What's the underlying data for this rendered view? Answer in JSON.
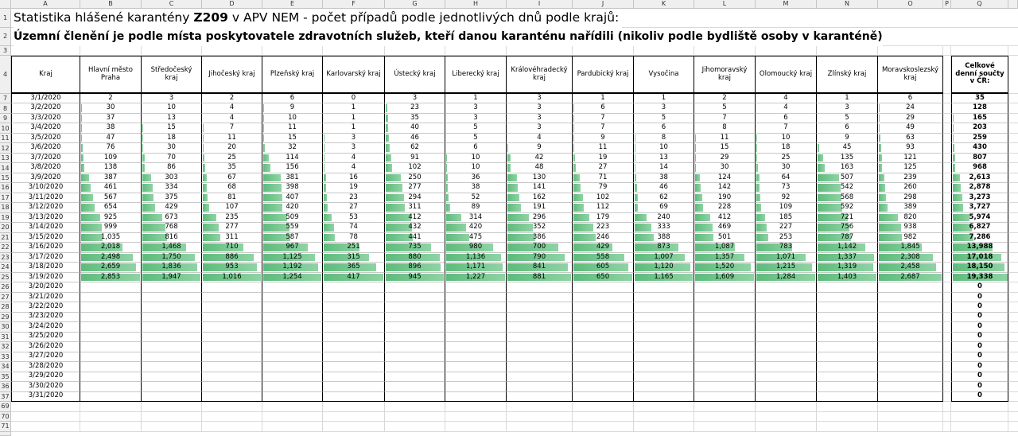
{
  "sheet": {
    "column_letters": [
      "A",
      "B",
      "C",
      "D",
      "E",
      "F",
      "G",
      "H",
      "I",
      "J",
      "K",
      "L",
      "M",
      "N",
      "O",
      "P",
      "Q"
    ],
    "row_numbers": [
      1,
      2,
      3,
      4,
      7,
      8,
      9,
      10,
      11,
      12,
      13,
      14,
      15,
      16,
      17,
      18,
      19,
      20,
      21,
      22,
      23,
      24,
      25,
      26,
      27,
      28,
      29,
      30,
      31,
      32,
      33,
      34,
      35,
      36,
      37,
      69,
      70,
      71
    ],
    "title_start": "Statistika hlášené karantény ",
    "title_code": "Z209",
    "title_end": " v APV NEM - počet případů podle jednotlivých dnů podle krajů:",
    "subtitle": "Územní členění je podle místa poskytovatele zdravotních služeb, kteří danou karanténu nařídili (nikoliv podle bydliště osoby v karanténě)"
  },
  "table": {
    "headers": [
      "Kraj",
      "Hlavní město Praha",
      "Středočeský kraj",
      "Jihočeský kraj",
      "Plzeňský kraj",
      "Karlovarský kraj",
      "Ústecký kraj",
      "Liberecký kraj",
      "Královéhradecký kraj",
      "Pardubický kraj",
      "Vysočina",
      "Jihomoravský kraj",
      "Olomoucký kraj",
      "Zlínský kraj",
      "Moravskoslezský kraj"
    ],
    "total_header": "Celkové denní součty v ČR:",
    "rows": [
      {
        "date": "3/1/2020",
        "values": [
          2,
          3,
          2,
          6,
          0,
          3,
          1,
          3,
          1,
          1,
          2,
          4,
          1,
          6
        ],
        "total": 35
      },
      {
        "date": "3/2/2020",
        "values": [
          30,
          10,
          4,
          9,
          1,
          23,
          3,
          3,
          6,
          3,
          5,
          4,
          3,
          24
        ],
        "total": 128
      },
      {
        "date": "3/3/2020",
        "values": [
          37,
          13,
          4,
          10,
          1,
          35,
          3,
          3,
          7,
          5,
          7,
          6,
          5,
          29
        ],
        "total": 165
      },
      {
        "date": "3/4/2020",
        "values": [
          38,
          15,
          7,
          11,
          1,
          40,
          5,
          3,
          7,
          6,
          8,
          7,
          6,
          49
        ],
        "total": 203
      },
      {
        "date": "3/5/2020",
        "values": [
          47,
          18,
          11,
          15,
          3,
          46,
          5,
          4,
          9,
          8,
          11,
          10,
          9,
          63
        ],
        "total": 259
      },
      {
        "date": "3/6/2020",
        "values": [
          76,
          30,
          20,
          32,
          3,
          62,
          6,
          9,
          11,
          10,
          15,
          18,
          45,
          93
        ],
        "total": 430
      },
      {
        "date": "3/7/2020",
        "values": [
          109,
          70,
          25,
          114,
          4,
          91,
          10,
          42,
          19,
          13,
          29,
          25,
          135,
          121
        ],
        "total": 807
      },
      {
        "date": "3/8/2020",
        "values": [
          138,
          86,
          35,
          156,
          4,
          102,
          10,
          48,
          27,
          14,
          30,
          30,
          163,
          125
        ],
        "total": 968
      },
      {
        "date": "3/9/2020",
        "values": [
          387,
          303,
          67,
          381,
          16,
          250,
          36,
          130,
          71,
          38,
          124,
          64,
          507,
          239
        ],
        "total": {
          "value": 2613,
          "label": "2,613"
        }
      },
      {
        "date": "3/10/2020",
        "values": [
          461,
          334,
          68,
          398,
          19,
          277,
          38,
          141,
          79,
          46,
          142,
          73,
          542,
          260
        ],
        "total": {
          "value": 2878,
          "label": "2,878"
        }
      },
      {
        "date": "3/11/2020",
        "values": [
          567,
          375,
          81,
          407,
          23,
          294,
          52,
          162,
          102,
          62,
          190,
          92,
          568,
          298
        ],
        "total": {
          "value": 3273,
          "label": "3,273"
        }
      },
      {
        "date": "3/12/2020",
        "values": [
          654,
          429,
          107,
          420,
          27,
          311,
          89,
          191,
          112,
          69,
          228,
          109,
          592,
          389
        ],
        "total": {
          "value": 3727,
          "label": "3,727"
        }
      },
      {
        "date": "3/13/2020",
        "values": [
          925,
          673,
          235,
          509,
          53,
          412,
          314,
          296,
          179,
          240,
          412,
          185,
          721,
          820
        ],
        "total": {
          "value": 5974,
          "label": "5,974"
        }
      },
      {
        "date": "3/14/2020",
        "values": [
          999,
          768,
          277,
          559,
          74,
          432,
          420,
          352,
          223,
          333,
          469,
          227,
          756,
          938
        ],
        "total": {
          "value": 6827,
          "label": "6,827"
        }
      },
      {
        "date": "3/15/2020",
        "values": [
          {
            "value": 1035,
            "label": "1,035"
          },
          816,
          311,
          587,
          78,
          441,
          475,
          386,
          246,
          388,
          501,
          253,
          787,
          982
        ],
        "total": {
          "value": 7286,
          "label": "7,286"
        }
      },
      {
        "date": "3/16/2020",
        "values": [
          {
            "value": 2018,
            "label": "2,018"
          },
          {
            "value": 1468,
            "label": "1,468"
          },
          710,
          967,
          251,
          735,
          980,
          700,
          429,
          873,
          {
            "value": 1087,
            "label": "1,087"
          },
          783,
          {
            "value": 1142,
            "label": "1,142"
          },
          {
            "value": 1845,
            "label": "1,845"
          }
        ],
        "total": {
          "value": 13988,
          "label": "13,988"
        }
      },
      {
        "date": "3/17/2020",
        "values": [
          {
            "value": 2498,
            "label": "2,498"
          },
          {
            "value": 1750,
            "label": "1,750"
          },
          886,
          {
            "value": 1125,
            "label": "1,125"
          },
          315,
          880,
          {
            "value": 1136,
            "label": "1,136"
          },
          790,
          558,
          {
            "value": 1007,
            "label": "1,007"
          },
          {
            "value": 1357,
            "label": "1,357"
          },
          {
            "value": 1071,
            "label": "1,071"
          },
          {
            "value": 1337,
            "label": "1,337"
          },
          {
            "value": 2308,
            "label": "2,308"
          }
        ],
        "total": {
          "value": 17018,
          "label": "17,018"
        }
      },
      {
        "date": "3/18/2020",
        "values": [
          {
            "value": 2659,
            "label": "2,659"
          },
          {
            "value": 1836,
            "label": "1,836"
          },
          953,
          {
            "value": 1192,
            "label": "1,192"
          },
          365,
          896,
          {
            "value": 1171,
            "label": "1,171"
          },
          841,
          605,
          {
            "value": 1120,
            "label": "1,120"
          },
          {
            "value": 1520,
            "label": "1,520"
          },
          {
            "value": 1215,
            "label": "1,215"
          },
          {
            "value": 1319,
            "label": "1,319"
          },
          {
            "value": 2458,
            "label": "2,458"
          }
        ],
        "total": {
          "value": 18150,
          "label": "18,150"
        }
      },
      {
        "date": "3/19/2020",
        "values": [
          {
            "value": 2853,
            "label": "2,853"
          },
          {
            "value": 1947,
            "label": "1,947"
          },
          {
            "value": 1016,
            "label": "1,016"
          },
          {
            "value": 1254,
            "label": "1,254"
          },
          417,
          945,
          {
            "value": 1227,
            "label": "1,227"
          },
          881,
          650,
          {
            "value": 1165,
            "label": "1,165"
          },
          {
            "value": 1609,
            "label": "1,609"
          },
          {
            "value": 1284,
            "label": "1,284"
          },
          {
            "value": 1403,
            "label": "1,403"
          },
          {
            "value": 2687,
            "label": "2,687"
          }
        ],
        "total": {
          "value": 19338,
          "label": "19,338"
        }
      },
      {
        "date": "3/20/2020",
        "total": 0
      },
      {
        "date": "3/21/2020",
        "total": 0
      },
      {
        "date": "3/22/2020",
        "total": 0
      },
      {
        "date": "3/23/2020",
        "total": 0
      },
      {
        "date": "3/24/2020",
        "total": 0
      },
      {
        "date": "3/25/2020",
        "total": 0
      },
      {
        "date": "3/26/2020",
        "total": 0
      },
      {
        "date": "3/27/2020",
        "total": 0
      },
      {
        "date": "3/28/2020",
        "total": 0
      },
      {
        "date": "3/29/2020",
        "total": 0
      },
      {
        "date": "3/30/2020",
        "total": 0
      },
      {
        "date": "3/31/2020",
        "total": 0
      }
    ]
  }
}
